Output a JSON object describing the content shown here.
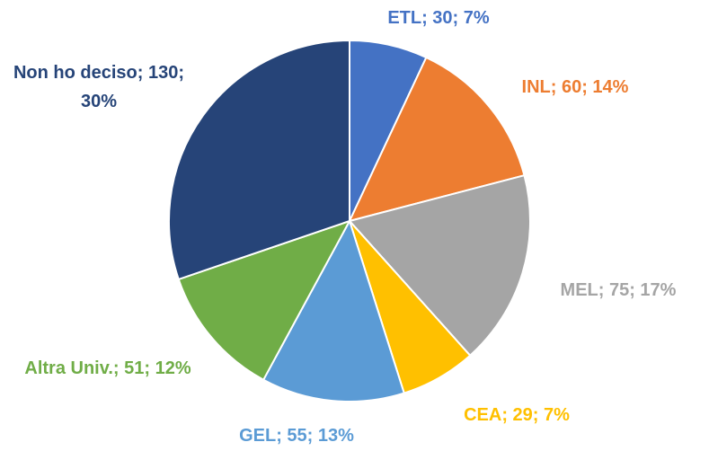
{
  "chart_data": {
    "type": "pie",
    "values": [
      30,
      60,
      75,
      29,
      55,
      51,
      130
    ],
    "value_labels": [
      "ETL; 30; 7%",
      "INL; 60; 14%",
      "MEL; 75; 17%",
      "CEA; 29; 7%",
      "GEL; 55; 13%",
      "Altra Univ.; 51; 12%",
      "Non ho deciso; 130; 30%"
    ],
    "colors": [
      "#4472c4",
      "#ed7d31",
      "#a5a5a5",
      "#ffc000",
      "#5b9bd5",
      "#70ad47",
      "#264478"
    ]
  }
}
